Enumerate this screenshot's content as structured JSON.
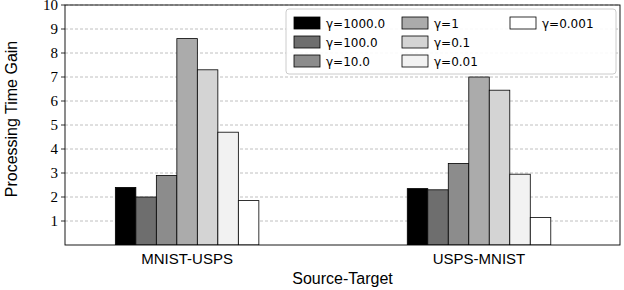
{
  "chart_data": {
    "type": "bar",
    "x_label": "Source-Target",
    "y_label": "Processing Time Gain",
    "categories": [
      "MNIST-USPS",
      "USPS-MNIST"
    ],
    "series": [
      {
        "name": "γ=1000.0",
        "color": "#000000",
        "values": [
          2.4,
          2.35
        ]
      },
      {
        "name": "γ=100.0",
        "color": "#6e6e6e",
        "values": [
          2.0,
          2.3
        ]
      },
      {
        "name": "γ=10.0",
        "color": "#8c8c8c",
        "values": [
          2.9,
          3.4
        ]
      },
      {
        "name": "γ=1",
        "color": "#ababab",
        "values": [
          8.6,
          7.0
        ]
      },
      {
        "name": "γ=0.1",
        "color": "#d4d4d4",
        "values": [
          7.3,
          6.45
        ]
      },
      {
        "name": "γ=0.01",
        "color": "#f2f2f2",
        "values": [
          4.7,
          2.95
        ]
      },
      {
        "name": "γ=0.001",
        "color": "#ffffff",
        "values": [
          1.85,
          1.15
        ]
      }
    ],
    "ylim": [
      0,
      10
    ],
    "yticks": [
      1,
      2,
      3,
      4,
      5,
      6,
      7,
      8,
      9,
      10
    ],
    "grid": true,
    "legend": "upper right"
  }
}
